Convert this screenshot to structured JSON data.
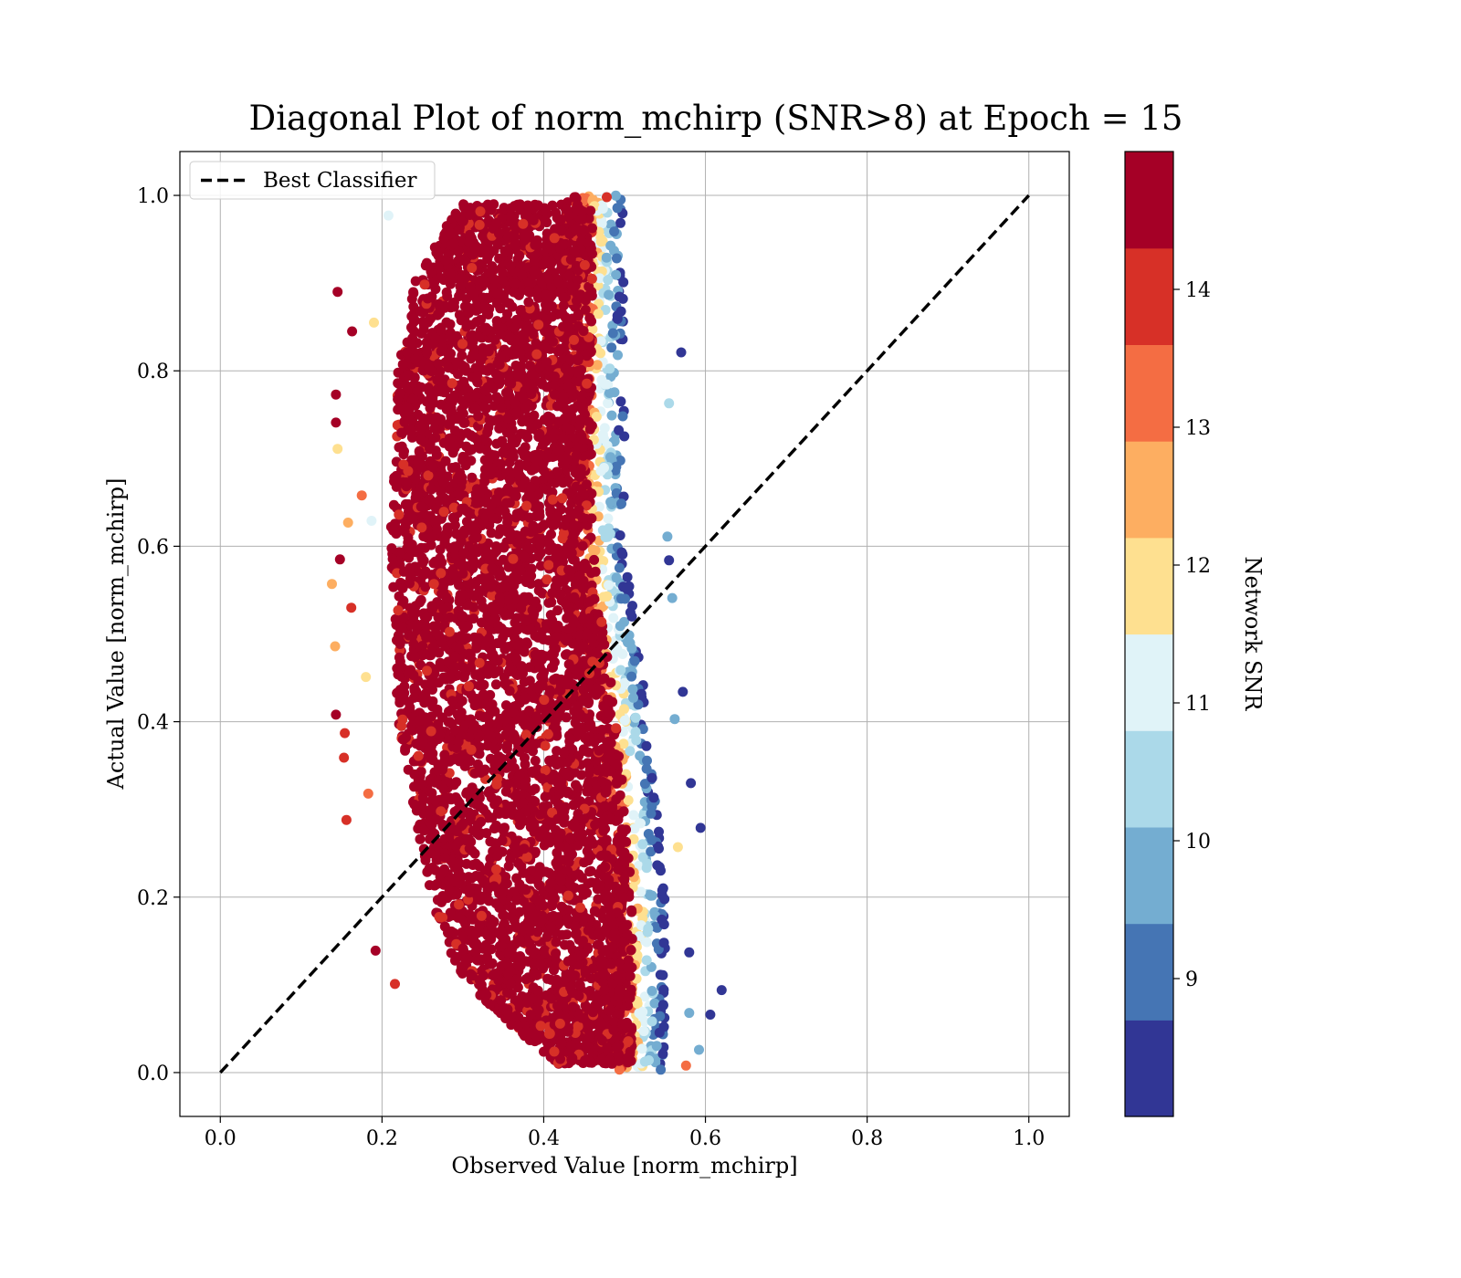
{
  "chart_data": {
    "type": "scatter",
    "title": "Diagonal Plot of norm_mchirp (SNR>8) at Epoch = 15",
    "xlabel": "Observed Value [norm_mchirp]",
    "ylabel": "Actual Value [norm_mchirp]",
    "xlim": [
      -0.05,
      1.05
    ],
    "ylim": [
      -0.05,
      1.05
    ],
    "xticks": [
      "0.0",
      "0.2",
      "0.4",
      "0.6",
      "0.8",
      "1.0"
    ],
    "yticks": [
      "0.0",
      "0.2",
      "0.4",
      "0.6",
      "0.8",
      "1.0"
    ],
    "grid": true,
    "legend": {
      "position": "upper-left",
      "entries": [
        {
          "label": "Best Classifier",
          "style": "dashed",
          "color": "#000000"
        }
      ]
    },
    "reference_line": {
      "name": "Best Classifier",
      "x": [
        0.0,
        1.0
      ],
      "y": [
        0.0,
        1.0
      ]
    },
    "colorbar": {
      "label": "Network SNR",
      "range": [
        8,
        15
      ],
      "ticks": [
        "9",
        "10",
        "11",
        "12",
        "13",
        "14"
      ],
      "colors": [
        "#313695",
        "#4575b4",
        "#74add1",
        "#abd9e9",
        "#e0f3f8",
        "#fee090",
        "#fdae61",
        "#f46d43",
        "#d73027",
        "#a50026"
      ]
    },
    "series": [
      {
        "color_by": "Network SNR",
        "cloud": {
          "y_range": [
            0.0,
            1.0
          ],
          "core_left_edge": [
            [
              0.0,
              0.43
            ],
            [
              0.1,
              0.3
            ],
            [
              0.2,
              0.26
            ],
            [
              0.4,
              0.22
            ],
            [
              0.6,
              0.21
            ],
            [
              0.8,
              0.22
            ],
            [
              0.9,
              0.24
            ],
            [
              1.0,
              0.3
            ]
          ],
          "core_right_edge": [
            [
              0.0,
              0.52
            ],
            [
              0.2,
              0.52
            ],
            [
              0.4,
              0.5
            ],
            [
              0.6,
              0.47
            ],
            [
              0.8,
              0.47
            ],
            [
              1.0,
              0.47
            ]
          ],
          "outer_band_width": 0.07,
          "snr_gradient": "high SNR (>14) in core, decreasing toward the right edge"
        },
        "points": [
          {
            "x": 0.145,
            "y": 0.89,
            "snr": 15
          },
          {
            "x": 0.163,
            "y": 0.845,
            "snr": 15
          },
          {
            "x": 0.143,
            "y": 0.773,
            "snr": 15
          },
          {
            "x": 0.143,
            "y": 0.741,
            "snr": 15
          },
          {
            "x": 0.145,
            "y": 0.711,
            "snr": 12
          },
          {
            "x": 0.158,
            "y": 0.627,
            "snr": 12.5
          },
          {
            "x": 0.148,
            "y": 0.585,
            "snr": 15
          },
          {
            "x": 0.138,
            "y": 0.557,
            "snr": 12.5
          },
          {
            "x": 0.162,
            "y": 0.53,
            "snr": 14
          },
          {
            "x": 0.142,
            "y": 0.486,
            "snr": 12.5
          },
          {
            "x": 0.143,
            "y": 0.408,
            "snr": 15
          },
          {
            "x": 0.154,
            "y": 0.387,
            "snr": 14
          },
          {
            "x": 0.153,
            "y": 0.359,
            "snr": 14
          },
          {
            "x": 0.156,
            "y": 0.288,
            "snr": 14
          },
          {
            "x": 0.183,
            "y": 0.318,
            "snr": 13
          },
          {
            "x": 0.18,
            "y": 0.451,
            "snr": 12
          },
          {
            "x": 0.19,
            "y": 0.855,
            "snr": 12
          },
          {
            "x": 0.175,
            "y": 0.658,
            "snr": 13
          },
          {
            "x": 0.187,
            "y": 0.629,
            "snr": 11
          },
          {
            "x": 0.208,
            "y": 0.977,
            "snr": 11
          },
          {
            "x": 0.192,
            "y": 0.139,
            "snr": 15
          },
          {
            "x": 0.216,
            "y": 0.101,
            "snr": 14
          },
          {
            "x": 0.57,
            "y": 0.821,
            "snr": 8.5
          },
          {
            "x": 0.572,
            "y": 0.434,
            "snr": 8.5
          },
          {
            "x": 0.582,
            "y": 0.33,
            "snr": 8.5
          },
          {
            "x": 0.594,
            "y": 0.279,
            "snr": 8.5
          },
          {
            "x": 0.566,
            "y": 0.257,
            "snr": 12
          },
          {
            "x": 0.62,
            "y": 0.094,
            "snr": 8.5
          },
          {
            "x": 0.606,
            "y": 0.066,
            "snr": 8.5
          },
          {
            "x": 0.58,
            "y": 0.137,
            "snr": 8.5
          },
          {
            "x": 0.555,
            "y": 0.584,
            "snr": 8.5
          },
          {
            "x": 0.553,
            "y": 0.611,
            "snr": 9.5
          },
          {
            "x": 0.555,
            "y": 0.763,
            "snr": 10.5
          },
          {
            "x": 0.592,
            "y": 0.026,
            "snr": 10
          },
          {
            "x": 0.576,
            "y": 0.008,
            "snr": 13
          },
          {
            "x": 0.58,
            "y": 0.068,
            "snr": 10
          },
          {
            "x": 0.562,
            "y": 0.403,
            "snr": 9.5
          },
          {
            "x": 0.559,
            "y": 0.541,
            "snr": 9.5
          },
          {
            "x": 0.478,
            "y": 0.998,
            "snr": 14
          },
          {
            "x": 0.438,
            "y": 0.998,
            "snr": 15
          }
        ]
      }
    ]
  }
}
